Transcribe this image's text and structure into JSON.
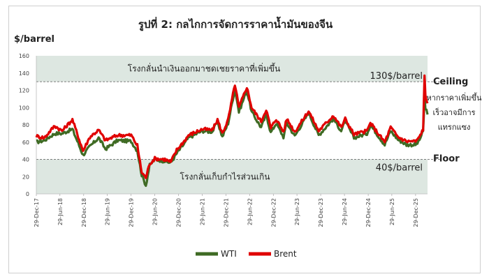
{
  "chart_data": {
    "type": "line",
    "title": "รูปที่ 2: กลไกการจัดการราคาน้ำมันของจีน",
    "ylabel": "$/barrel",
    "ylim": [
      0,
      160
    ],
    "y_ticks": [
      "0",
      "20",
      "40",
      "60",
      "80",
      "100",
      "120",
      "140",
      "160"
    ],
    "x_ticks": [
      "29-Dec-17",
      "29-Jun-18",
      "29-Dec-18",
      "29-Jun-19",
      "29-Dec-19",
      "29-Jun-20",
      "29-Dec-20",
      "29-Jun-21",
      "29-Dec-21",
      "29-Jun-22",
      "29-Dec-22",
      "29-Jun-23",
      "29-Dec-23",
      "29-Jun-24",
      "29-Dec-24",
      "29-Jun-25",
      "29-Dec-25"
    ],
    "x_start": "2017-12-29",
    "x_end": "2026-03-31",
    "grid": false,
    "legend_position": "bottom",
    "thresholds": {
      "ceiling": {
        "value": 130,
        "label": "130$/barrel",
        "side_label": "Ceiling"
      },
      "floor": {
        "value": 40,
        "label": "40$/barrel",
        "side_label": "Floor"
      }
    },
    "bands": {
      "upper": {
        "from": 130,
        "to": 160,
        "text": "โรงกลั่นนำเงินออกมาชดเชยราคาที่เพิ่มขึ้น"
      },
      "lower": {
        "from": 0,
        "to": 40,
        "text": "โรงกลั่นเก็บกำไรส่วนเกิน"
      }
    },
    "side_note": [
      "หากราคาเพิ่มขึ้น",
      "เร็วอาจมีการ",
      "แทรกแซง"
    ],
    "colors": {
      "wti": "#3f6b24",
      "brent": "#e00000",
      "band": "#dde7e1"
    },
    "series": [
      {
        "name": "WTI",
        "points": [
          [
            "2017-12-29",
            60
          ],
          [
            "2018-03-01",
            62
          ],
          [
            "2018-05-20",
            70
          ],
          [
            "2018-07-15",
            70
          ],
          [
            "2018-10-03",
            75
          ],
          [
            "2018-12-24",
            45
          ],
          [
            "2019-02-15",
            55
          ],
          [
            "2019-04-23",
            65
          ],
          [
            "2019-06-15",
            52
          ],
          [
            "2019-09-16",
            62
          ],
          [
            "2019-12-30",
            61
          ],
          [
            "2020-02-15",
            50
          ],
          [
            "2020-03-20",
            22
          ],
          [
            "2020-04-21",
            10
          ],
          [
            "2020-05-20",
            33
          ],
          [
            "2020-06-29",
            40
          ],
          [
            "2020-09-15",
            38
          ],
          [
            "2020-10-30",
            36
          ],
          [
            "2020-12-15",
            47
          ],
          [
            "2021-02-20",
            60
          ],
          [
            "2021-03-15",
            65
          ],
          [
            "2021-06-29",
            73
          ],
          [
            "2021-09-15",
            72
          ],
          [
            "2021-10-25",
            84
          ],
          [
            "2021-12-01",
            66
          ],
          [
            "2022-01-15",
            82
          ],
          [
            "2022-03-08",
            122
          ],
          [
            "2022-04-08",
            95
          ],
          [
            "2022-06-08",
            120
          ],
          [
            "2022-07-15",
            95
          ],
          [
            "2022-09-26",
            77
          ],
          [
            "2022-11-04",
            92
          ],
          [
            "2022-12-09",
            71
          ],
          [
            "2023-01-20",
            82
          ],
          [
            "2023-03-17",
            66
          ],
          [
            "2023-04-12",
            82
          ],
          [
            "2023-06-12",
            67
          ],
          [
            "2023-09-27",
            94
          ],
          [
            "2023-12-13",
            68
          ],
          [
            "2024-04-05",
            87
          ],
          [
            "2024-06-04",
            73
          ],
          [
            "2024-07-05",
            84
          ],
          [
            "2024-09-10",
            65
          ],
          [
            "2024-12-20",
            70
          ],
          [
            "2025-01-15",
            80
          ],
          [
            "2025-05-05",
            57
          ],
          [
            "2025-06-20",
            73
          ],
          [
            "2025-08-15",
            63
          ],
          [
            "2025-10-20",
            57
          ],
          [
            "2025-12-29",
            57
          ],
          [
            "2026-01-20",
            60
          ],
          [
            "2026-02-25",
            72
          ],
          [
            "2026-03-08",
            110
          ],
          [
            "2026-03-15",
            100
          ],
          [
            "2026-03-31",
            92
          ]
        ]
      },
      {
        "name": "Brent",
        "points": [
          [
            "2017-12-29",
            67
          ],
          [
            "2018-03-01",
            65
          ],
          [
            "2018-05-20",
            79
          ],
          [
            "2018-07-15",
            73
          ],
          [
            "2018-10-03",
            86
          ],
          [
            "2018-12-24",
            50
          ],
          [
            "2019-02-15",
            66
          ],
          [
            "2019-04-23",
            74
          ],
          [
            "2019-06-15",
            62
          ],
          [
            "2019-09-16",
            68
          ],
          [
            "2019-12-30",
            68
          ],
          [
            "2020-02-15",
            56
          ],
          [
            "2020-03-20",
            25
          ],
          [
            "2020-04-21",
            19
          ],
          [
            "2020-05-20",
            35
          ],
          [
            "2020-06-29",
            41
          ],
          [
            "2020-09-15",
            40
          ],
          [
            "2020-10-30",
            37
          ],
          [
            "2020-12-15",
            51
          ],
          [
            "2021-02-20",
            63
          ],
          [
            "2021-03-15",
            68
          ],
          [
            "2021-06-29",
            75
          ],
          [
            "2021-09-15",
            74
          ],
          [
            "2021-10-25",
            86
          ],
          [
            "2021-12-01",
            70
          ],
          [
            "2022-01-15",
            86
          ],
          [
            "2022-03-08",
            127
          ],
          [
            "2022-04-08",
            100
          ],
          [
            "2022-06-08",
            124
          ],
          [
            "2022-07-15",
            100
          ],
          [
            "2022-09-26",
            84
          ],
          [
            "2022-11-04",
            98
          ],
          [
            "2022-12-09",
            76
          ],
          [
            "2023-01-20",
            87
          ],
          [
            "2023-03-17",
            72
          ],
          [
            "2023-04-12",
            87
          ],
          [
            "2023-06-12",
            72
          ],
          [
            "2023-09-27",
            96
          ],
          [
            "2023-12-13",
            73
          ],
          [
            "2024-04-05",
            91
          ],
          [
            "2024-06-04",
            77
          ],
          [
            "2024-07-05",
            87
          ],
          [
            "2024-09-10",
            69
          ],
          [
            "2024-12-20",
            73
          ],
          [
            "2025-01-15",
            82
          ],
          [
            "2025-05-05",
            60
          ],
          [
            "2025-06-20",
            77
          ],
          [
            "2025-08-15",
            66
          ],
          [
            "2025-10-20",
            61
          ],
          [
            "2025-12-29",
            61
          ],
          [
            "2026-01-20",
            64
          ],
          [
            "2026-02-25",
            75
          ],
          [
            "2026-03-08",
            136
          ],
          [
            "2026-03-15",
            115
          ],
          [
            "2026-03-31",
            105
          ]
        ]
      }
    ]
  }
}
